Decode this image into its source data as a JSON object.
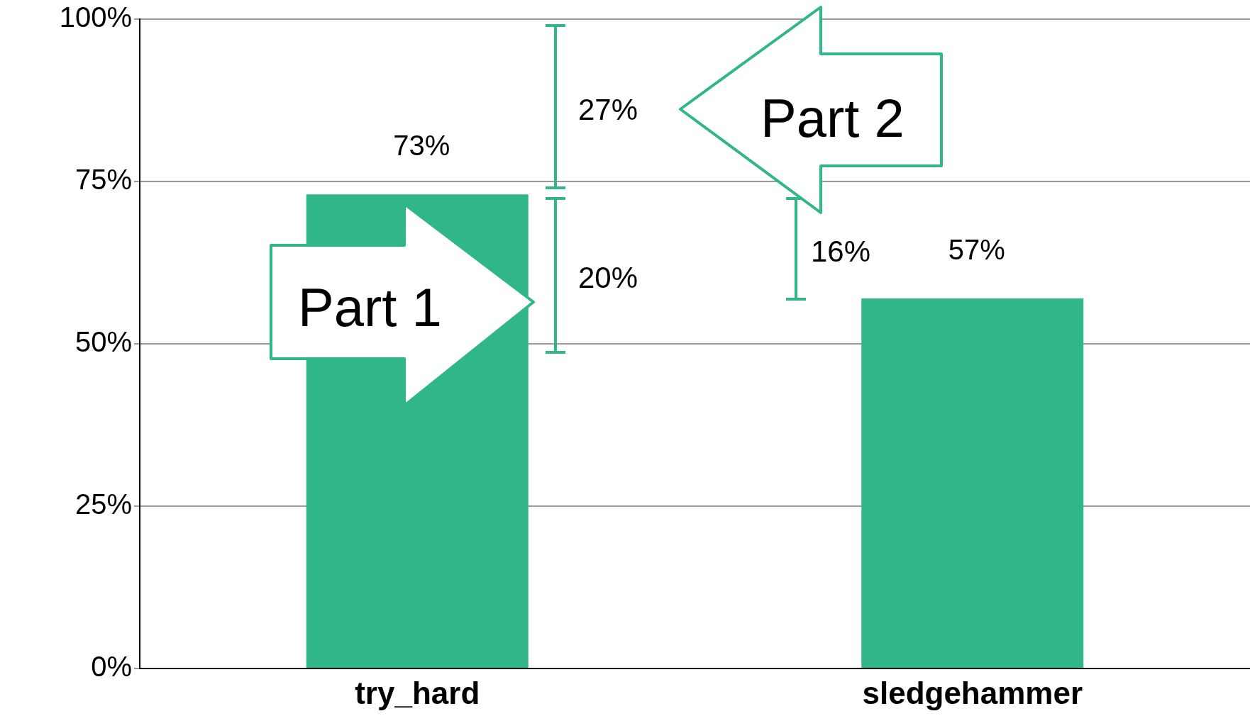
{
  "chart_data": {
    "type": "bar",
    "categories": [
      "try_hard",
      "sledgehammer"
    ],
    "values": [
      73,
      57
    ],
    "color": "#31b787",
    "ylim": [
      0,
      100
    ],
    "yticks": [
      {
        "value": 0,
        "label": "0%"
      },
      {
        "value": 25,
        "label": "25%"
      },
      {
        "value": 50,
        "label": "50%"
      },
      {
        "value": 75,
        "label": "75%"
      },
      {
        "value": 100,
        "label": "100%"
      }
    ],
    "grid": "y",
    "value_labels": [
      "73%",
      "57%"
    ],
    "legend": false,
    "annotations": [
      "Part 1",
      "Part 2",
      "27%",
      "20%",
      "16%"
    ]
  }
}
